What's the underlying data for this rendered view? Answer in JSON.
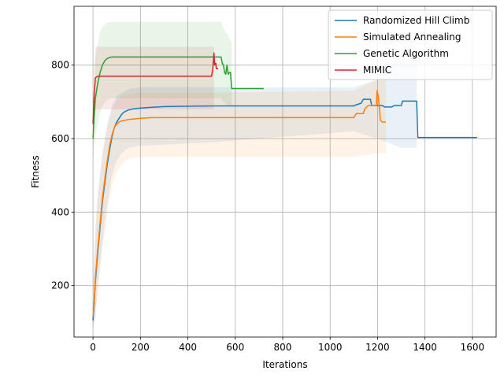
{
  "chart_data": {
    "type": "line",
    "xlabel": "Iterations",
    "ylabel": "Fitness",
    "xlim": [
      -80,
      1700
    ],
    "ylim": [
      60,
      960
    ],
    "xticks": [
      0,
      200,
      400,
      600,
      800,
      1000,
      1200,
      1400,
      1600
    ],
    "yticks": [
      200,
      400,
      600,
      800
    ],
    "grid": true,
    "legend_position": "top-right",
    "series": [
      {
        "name": "Randomized Hill Climb",
        "color": "#1f77b4",
        "points": [
          [
            0,
            105
          ],
          [
            5,
            150
          ],
          [
            10,
            210
          ],
          [
            20,
            290
          ],
          [
            30,
            360
          ],
          [
            40,
            430
          ],
          [
            50,
            480
          ],
          [
            60,
            530
          ],
          [
            70,
            570
          ],
          [
            80,
            605
          ],
          [
            90,
            630
          ],
          [
            100,
            645
          ],
          [
            110,
            655
          ],
          [
            120,
            665
          ],
          [
            130,
            672
          ],
          [
            150,
            678
          ],
          [
            170,
            681
          ],
          [
            200,
            683
          ],
          [
            250,
            685
          ],
          [
            300,
            687
          ],
          [
            400,
            688
          ],
          [
            500,
            689
          ],
          [
            1100,
            689
          ],
          [
            1110,
            692
          ],
          [
            1130,
            696
          ],
          [
            1140,
            707
          ],
          [
            1170,
            707
          ],
          [
            1175,
            690
          ],
          [
            1220,
            690
          ],
          [
            1230,
            686
          ],
          [
            1260,
            686
          ],
          [
            1270,
            690
          ],
          [
            1300,
            690
          ],
          [
            1305,
            702
          ],
          [
            1365,
            702
          ],
          [
            1370,
            603
          ],
          [
            1620,
            603
          ]
        ],
        "band_upper": [
          [
            0,
            200
          ],
          [
            10,
            350
          ],
          [
            20,
            450
          ],
          [
            40,
            560
          ],
          [
            60,
            640
          ],
          [
            80,
            690
          ],
          [
            100,
            715
          ],
          [
            120,
            725
          ],
          [
            150,
            735
          ],
          [
            200,
            740
          ],
          [
            500,
            740
          ],
          [
            1100,
            740
          ],
          [
            1200,
            760
          ],
          [
            1300,
            830
          ],
          [
            1365,
            830
          ],
          [
            1365,
            603
          ]
        ],
        "band_lower": [
          [
            0,
            80
          ],
          [
            10,
            120
          ],
          [
            20,
            200
          ],
          [
            40,
            320
          ],
          [
            60,
            420
          ],
          [
            80,
            500
          ],
          [
            100,
            540
          ],
          [
            120,
            560
          ],
          [
            150,
            575
          ],
          [
            200,
            580
          ],
          [
            500,
            590
          ],
          [
            1100,
            620
          ],
          [
            1200,
            600
          ],
          [
            1300,
            575
          ],
          [
            1365,
            575
          ],
          [
            1365,
            603
          ]
        ]
      },
      {
        "name": "Simulated Annealing",
        "color": "#ff7f0e",
        "points": [
          [
            0,
            115
          ],
          [
            5,
            160
          ],
          [
            10,
            220
          ],
          [
            20,
            300
          ],
          [
            30,
            370
          ],
          [
            40,
            440
          ],
          [
            50,
            490
          ],
          [
            60,
            540
          ],
          [
            70,
            580
          ],
          [
            80,
            610
          ],
          [
            90,
            630
          ],
          [
            100,
            640
          ],
          [
            110,
            645
          ],
          [
            120,
            648
          ],
          [
            150,
            652
          ],
          [
            200,
            655
          ],
          [
            250,
            657
          ],
          [
            400,
            657
          ],
          [
            1000,
            657
          ],
          [
            1100,
            657
          ],
          [
            1110,
            668
          ],
          [
            1140,
            668
          ],
          [
            1145,
            680
          ],
          [
            1160,
            690
          ],
          [
            1195,
            690
          ],
          [
            1198,
            730
          ],
          [
            1202,
            720
          ],
          [
            1207,
            690
          ],
          [
            1212,
            650
          ],
          [
            1220,
            645
          ],
          [
            1235,
            645
          ]
        ],
        "band_upper": [
          [
            0,
            190
          ],
          [
            10,
            340
          ],
          [
            20,
            440
          ],
          [
            40,
            560
          ],
          [
            60,
            630
          ],
          [
            80,
            680
          ],
          [
            100,
            705
          ],
          [
            120,
            715
          ],
          [
            150,
            720
          ],
          [
            200,
            725
          ],
          [
            500,
            725
          ],
          [
            1100,
            730
          ],
          [
            1200,
            760
          ],
          [
            1235,
            760
          ]
        ],
        "band_lower": [
          [
            0,
            80
          ],
          [
            10,
            110
          ],
          [
            20,
            180
          ],
          [
            40,
            300
          ],
          [
            60,
            400
          ],
          [
            80,
            470
          ],
          [
            100,
            510
          ],
          [
            120,
            530
          ],
          [
            150,
            545
          ],
          [
            200,
            550
          ],
          [
            500,
            550
          ],
          [
            1100,
            550
          ],
          [
            1200,
            560
          ],
          [
            1235,
            560
          ]
        ]
      },
      {
        "name": "Genetic Algorithm",
        "color": "#2ca02c",
        "points": [
          [
            0,
            600
          ],
          [
            5,
            660
          ],
          [
            10,
            710
          ],
          [
            20,
            750
          ],
          [
            30,
            780
          ],
          [
            40,
            800
          ],
          [
            50,
            812
          ],
          [
            60,
            818
          ],
          [
            70,
            821
          ],
          [
            80,
            822
          ],
          [
            100,
            822
          ],
          [
            200,
            822
          ],
          [
            300,
            822
          ],
          [
            540,
            822
          ],
          [
            545,
            805
          ],
          [
            550,
            800
          ],
          [
            555,
            780
          ],
          [
            560,
            775
          ],
          [
            565,
            800
          ],
          [
            570,
            775
          ],
          [
            575,
            780
          ],
          [
            580,
            780
          ],
          [
            585,
            736
          ],
          [
            720,
            736
          ]
        ],
        "band_upper": [
          [
            0,
            700
          ],
          [
            10,
            820
          ],
          [
            20,
            860
          ],
          [
            30,
            890
          ],
          [
            40,
            905
          ],
          [
            60,
            915
          ],
          [
            80,
            918
          ],
          [
            540,
            918
          ],
          [
            550,
            900
          ],
          [
            570,
            880
          ],
          [
            585,
            860
          ]
        ],
        "band_lower": [
          [
            0,
            540
          ],
          [
            10,
            610
          ],
          [
            20,
            640
          ],
          [
            30,
            670
          ],
          [
            40,
            690
          ],
          [
            60,
            705
          ],
          [
            80,
            710
          ],
          [
            540,
            710
          ],
          [
            550,
            700
          ],
          [
            570,
            690
          ],
          [
            585,
            690
          ]
        ]
      },
      {
        "name": "MIMIC",
        "color": "#d62728",
        "points": [
          [
            0,
            640
          ],
          [
            5,
            720
          ],
          [
            10,
            765
          ],
          [
            20,
            770
          ],
          [
            50,
            770
          ],
          [
            100,
            770
          ],
          [
            200,
            770
          ],
          [
            300,
            770
          ],
          [
            400,
            770
          ],
          [
            500,
            770
          ],
          [
            505,
            790
          ],
          [
            510,
            833
          ],
          [
            513,
            800
          ],
          [
            518,
            805
          ],
          [
            520,
            790
          ],
          [
            528,
            790
          ]
        ],
        "band_upper": [
          [
            0,
            700
          ],
          [
            5,
            780
          ],
          [
            10,
            850
          ],
          [
            500,
            850
          ],
          [
            510,
            850
          ]
        ],
        "band_lower": [
          [
            0,
            580
          ],
          [
            5,
            640
          ],
          [
            10,
            680
          ],
          [
            500,
            680
          ],
          [
            510,
            680
          ]
        ]
      }
    ]
  }
}
